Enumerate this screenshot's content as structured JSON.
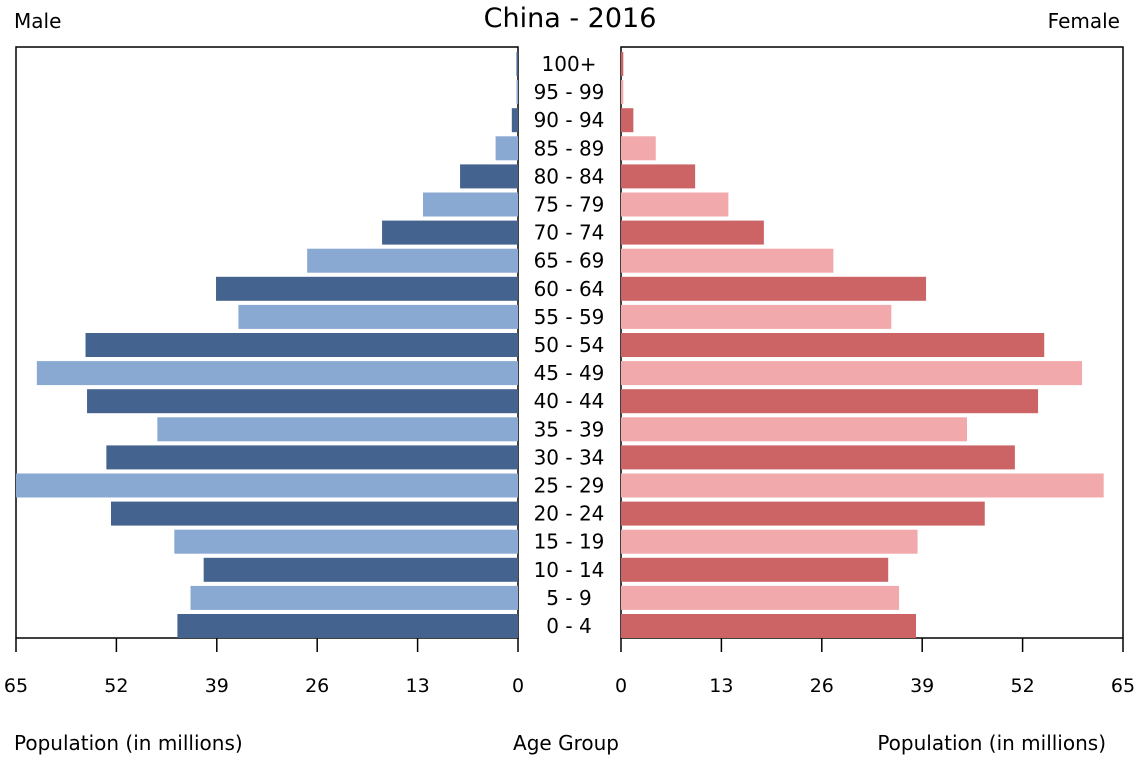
{
  "chart_data": {
    "type": "bar",
    "title": "China - 2016",
    "left_label": "Male",
    "right_label": "Female",
    "xlabel_left": "Population (in millions)",
    "xlabel_center": "Age Group",
    "xlabel_right": "Population (in millions)",
    "xlim": [
      0,
      65
    ],
    "ticks": [
      "0",
      "13",
      "26",
      "39",
      "52",
      "65"
    ],
    "categories": [
      "100+",
      "95 - 99",
      "90 - 94",
      "85 - 89",
      "80 - 84",
      "75 - 79",
      "70 - 74",
      "65 - 69",
      "60 - 64",
      "55 - 59",
      "50 - 54",
      "45 - 49",
      "40 - 44",
      "35 - 39",
      "30 - 34",
      "25 - 29",
      "20 - 24",
      "15 - 19",
      "10 - 14",
      "5 - 9",
      "0 - 4"
    ],
    "series": [
      {
        "name": "Male",
        "values": [
          0.2,
          0.2,
          0.8,
          2.9,
          7.5,
          12.3,
          17.6,
          27.3,
          39.1,
          36.2,
          56.0,
          62.3,
          55.8,
          46.7,
          53.3,
          65.0,
          52.7,
          44.5,
          40.7,
          42.4,
          44.1
        ]
      },
      {
        "name": "Female",
        "values": [
          0.3,
          0.3,
          1.6,
          4.5,
          9.6,
          13.9,
          18.5,
          27.5,
          39.5,
          35.0,
          54.8,
          59.7,
          54.0,
          44.8,
          51.0,
          62.5,
          47.1,
          38.4,
          34.6,
          36.0,
          38.2
        ]
      }
    ],
    "colors": {
      "male_dark": "#44638e",
      "male_light": "#89a9d2",
      "female_dark": "#cc6466",
      "female_light": "#f2a9ac"
    },
    "grid": false
  }
}
